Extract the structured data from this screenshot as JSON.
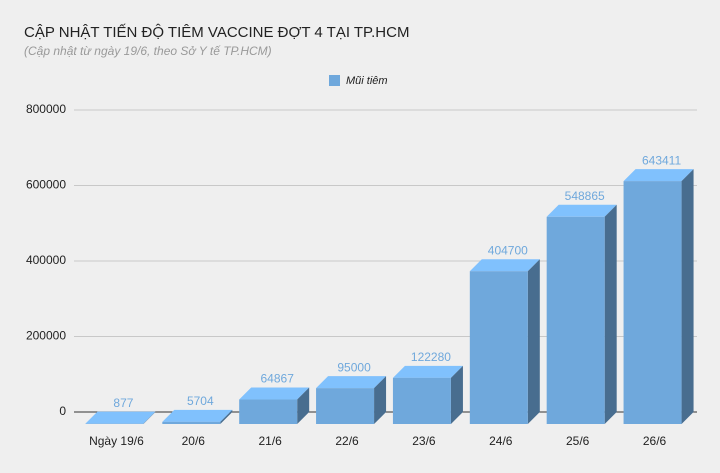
{
  "chart_data": {
    "type": "bar3d",
    "title": "CẬP NHẬT TIẾN ĐỘ TIÊM VACCINE ĐỢT 4 TẠI TP.HCM",
    "subtitle": "(Cập nhật từ ngày 19/6, theo Sở Y tế TP.HCM)",
    "categories": [
      "Ngày 19/6",
      "20/6",
      "21/6",
      "22/6",
      "23/6",
      "24/6",
      "25/6",
      "26/6"
    ],
    "series": [
      {
        "name": "Mũi tiêm",
        "color": "#6fa8dc",
        "values": [
          877,
          5704,
          64867,
          95000,
          122280,
          404700,
          548865,
          643411
        ]
      }
    ],
    "ylim": [
      0,
      800000
    ],
    "yticks": [
      0,
      200000,
      400000,
      600000,
      800000
    ],
    "grid": true,
    "legend": "top"
  }
}
